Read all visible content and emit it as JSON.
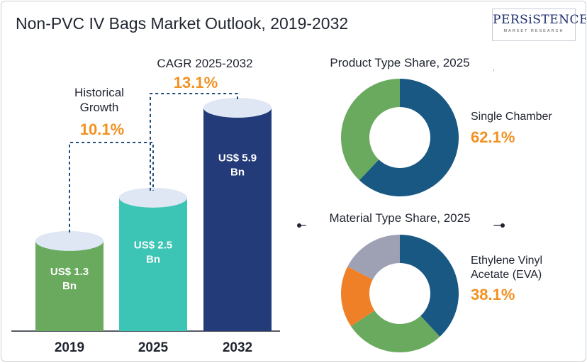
{
  "title": "Non-PVC IV Bags Market Outlook, 2019-2032",
  "logo": {
    "main": "PERSiSTENCE",
    "sub": "MARKET RESEARCH"
  },
  "colors": {
    "bar_2019": "#6aaa5f",
    "bar_2025": "#3cc4b4",
    "bar_2032": "#233b78",
    "accent_orange": "#f29122",
    "dashed_line": "#1e4a7a",
    "donut_blue": "#185883",
    "donut_green": "#6aaa5f",
    "donut_orange": "#ef8028",
    "donut_gray": "#9ea0b4"
  },
  "annotations": {
    "historical_label": "Historical\nGrowth",
    "historical_value": "10.1%",
    "cagr_label": "CAGR 2025-2032",
    "cagr_value": "13.1%"
  },
  "chart_data": [
    {
      "type": "bar",
      "categories": [
        "2019",
        "2025",
        "2032"
      ],
      "values": [
        1.3,
        2.5,
        5.9
      ],
      "value_labels": [
        "US$ 1.3\nBn",
        "US$ 2.5\nBn",
        "US$ 5.9\nBn"
      ]
    },
    {
      "type": "pie",
      "title": "Product Type Share, 2025",
      "highlight_label": "Single Chamber",
      "highlight_value": "62.1%",
      "slices": [
        {
          "value": 62.1,
          "color": "#185883"
        },
        {
          "value": 37.9,
          "color": "#6aaa5f"
        }
      ]
    },
    {
      "type": "pie",
      "title": "Material Type Share, 2025",
      "highlight_label": "Ethylene Vinyl\nAcetate (EVA)",
      "highlight_value": "38.1%",
      "slices": [
        {
          "value": 38.1,
          "color": "#185883"
        },
        {
          "value": 27.5,
          "color": "#6aaa5f"
        },
        {
          "value": 17.0,
          "color": "#ef8028"
        },
        {
          "value": 17.4,
          "color": "#9ea0b4"
        }
      ]
    }
  ]
}
